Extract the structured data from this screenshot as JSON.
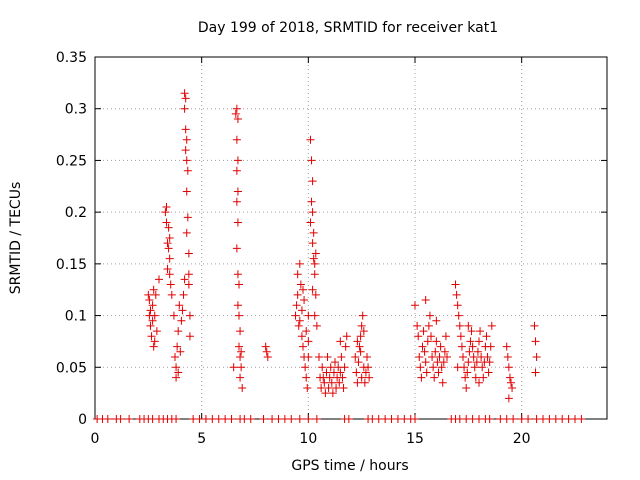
{
  "chart_data": {
    "type": "scatter",
    "title": "Day 199 of 2018, SRMTID for receiver kat1",
    "xlabel": "GPS time / hours",
    "ylabel": "SRMTID / TECUs",
    "xlim": [
      0,
      24
    ],
    "ylim": [
      0,
      0.35
    ],
    "x_ticks": [
      0,
      5,
      10,
      15,
      20
    ],
    "y_ticks": [
      0,
      0.05,
      0.1,
      0.15,
      0.2,
      0.25,
      0.3,
      0.35
    ],
    "x_tick_labels": [
      "0",
      "5",
      "10",
      "15",
      "20"
    ],
    "y_tick_labels": [
      "0",
      "0.05",
      "0.1",
      "0.15",
      "0.2",
      "0.25",
      "0.3",
      "0.35"
    ],
    "grid": true,
    "marker": "+",
    "color": "#e00000",
    "series": [
      {
        "points": [
          [
            0.1,
            0
          ],
          [
            0.35,
            0
          ],
          [
            0.6,
            0
          ],
          [
            1.0,
            0
          ],
          [
            1.2,
            0
          ],
          [
            1.6,
            0
          ],
          [
            2.1,
            0
          ],
          [
            2.3,
            0
          ],
          [
            2.5,
            0
          ],
          [
            2.7,
            0
          ],
          [
            3.0,
            0
          ],
          [
            3.2,
            0
          ],
          [
            3.4,
            0
          ],
          [
            3.6,
            0
          ],
          [
            3.8,
            0
          ],
          [
            4.6,
            0
          ],
          [
            4.9,
            0
          ],
          [
            5.2,
            0
          ],
          [
            5.5,
            0
          ],
          [
            5.8,
            0
          ],
          [
            6.1,
            0
          ],
          [
            6.4,
            0
          ],
          [
            6.8,
            0
          ],
          [
            7.0,
            0
          ],
          [
            7.3,
            0
          ],
          [
            7.9,
            0
          ],
          [
            8.3,
            0
          ],
          [
            8.6,
            0
          ],
          [
            8.9,
            0
          ],
          [
            9.2,
            0
          ],
          [
            9.6,
            0
          ],
          [
            10.0,
            0
          ],
          [
            10.4,
            0
          ],
          [
            11.7,
            0
          ],
          [
            11.9,
            0
          ],
          [
            12.8,
            0
          ],
          [
            13.0,
            0
          ],
          [
            13.3,
            0
          ],
          [
            13.6,
            0
          ],
          [
            13.9,
            0
          ],
          [
            14.2,
            0
          ],
          [
            14.5,
            0
          ],
          [
            14.8,
            0
          ],
          [
            15.0,
            0
          ],
          [
            16.7,
            0
          ],
          [
            16.9,
            0
          ],
          [
            17.1,
            0
          ],
          [
            17.4,
            0
          ],
          [
            17.7,
            0
          ],
          [
            18.0,
            0
          ],
          [
            18.3,
            0
          ],
          [
            18.5,
            0
          ],
          [
            19.0,
            0
          ],
          [
            19.3,
            0
          ],
          [
            19.6,
            0
          ],
          [
            20.0,
            0
          ],
          [
            20.3,
            0
          ],
          [
            20.7,
            0
          ],
          [
            21.0,
            0
          ],
          [
            21.3,
            0
          ],
          [
            21.6,
            0
          ],
          [
            21.9,
            0
          ],
          [
            22.2,
            0
          ],
          [
            22.5,
            0
          ],
          [
            22.8,
            0
          ],
          [
            2.5,
            0.12
          ],
          [
            2.55,
            0.1
          ],
          [
            2.6,
            0.09
          ],
          [
            2.65,
            0.08
          ],
          [
            2.7,
            0.11
          ],
          [
            2.75,
            0.07
          ],
          [
            2.8,
            0.1
          ],
          [
            2.85,
            0.12
          ],
          [
            2.9,
            0.085
          ],
          [
            2.6,
            0.105
          ],
          [
            2.7,
            0.095
          ],
          [
            2.75,
            0.125
          ],
          [
            3.0,
            0.135
          ],
          [
            2.55,
            0.115
          ],
          [
            2.8,
            0.075
          ],
          [
            3.3,
            0.2
          ],
          [
            3.35,
            0.19
          ],
          [
            3.4,
            0.17
          ],
          [
            3.45,
            0.165
          ],
          [
            3.5,
            0.155
          ],
          [
            3.5,
            0.14
          ],
          [
            3.55,
            0.13
          ],
          [
            3.4,
            0.145
          ],
          [
            3.6,
            0.12
          ],
          [
            3.45,
            0.185
          ],
          [
            3.5,
            0.175
          ],
          [
            3.35,
            0.205
          ],
          [
            3.7,
            0.1
          ],
          [
            3.75,
            0.06
          ],
          [
            3.8,
            0.05
          ],
          [
            3.8,
            0.04
          ],
          [
            3.85,
            0.07
          ],
          [
            3.9,
            0.085
          ],
          [
            3.95,
            0.11
          ],
          [
            4.0,
            0.065
          ],
          [
            4.05,
            0.095
          ],
          [
            4.1,
            0.105
          ],
          [
            4.15,
            0.12
          ],
          [
            4.2,
            0.135
          ],
          [
            3.9,
            0.045
          ],
          [
            4.2,
            0.315
          ],
          [
            4.25,
            0.31
          ],
          [
            4.2,
            0.3
          ],
          [
            4.25,
            0.28
          ],
          [
            4.3,
            0.27
          ],
          [
            4.25,
            0.26
          ],
          [
            4.3,
            0.25
          ],
          [
            4.35,
            0.24
          ],
          [
            4.3,
            0.22
          ],
          [
            4.35,
            0.195
          ],
          [
            4.3,
            0.18
          ],
          [
            4.4,
            0.16
          ],
          [
            4.4,
            0.14
          ],
          [
            4.4,
            0.13
          ],
          [
            4.45,
            0.1
          ],
          [
            4.45,
            0.08
          ],
          [
            6.5,
            0.05
          ],
          [
            6.6,
            0.295
          ],
          [
            6.65,
            0.3
          ],
          [
            6.7,
            0.29
          ],
          [
            6.65,
            0.27
          ],
          [
            6.7,
            0.25
          ],
          [
            6.65,
            0.24
          ],
          [
            6.7,
            0.22
          ],
          [
            6.65,
            0.21
          ],
          [
            6.7,
            0.19
          ],
          [
            6.65,
            0.165
          ],
          [
            6.7,
            0.14
          ],
          [
            6.75,
            0.13
          ],
          [
            6.7,
            0.11
          ],
          [
            6.75,
            0.1
          ],
          [
            6.8,
            0.085
          ],
          [
            6.75,
            0.07
          ],
          [
            6.8,
            0.06
          ],
          [
            6.85,
            0.05
          ],
          [
            6.8,
            0.04
          ],
          [
            6.9,
            0.03
          ],
          [
            6.85,
            0.065
          ],
          [
            8.0,
            0.07
          ],
          [
            8.05,
            0.065
          ],
          [
            8.1,
            0.06
          ],
          [
            9.4,
            0.1
          ],
          [
            9.45,
            0.11
          ],
          [
            9.5,
            0.12
          ],
          [
            9.55,
            0.09
          ],
          [
            9.6,
            0.15
          ],
          [
            9.65,
            0.13
          ],
          [
            9.7,
            0.08
          ],
          [
            9.75,
            0.07
          ],
          [
            9.8,
            0.06
          ],
          [
            9.85,
            0.05
          ],
          [
            9.9,
            0.04
          ],
          [
            9.95,
            0.03
          ],
          [
            9.6,
            0.095
          ],
          [
            9.7,
            0.105
          ],
          [
            9.8,
            0.115
          ],
          [
            9.9,
            0.085
          ],
          [
            10.0,
            0.075
          ],
          [
            9.5,
            0.14
          ],
          [
            9.75,
            0.125
          ],
          [
            10.0,
            0.1
          ],
          [
            10.0,
            0.06
          ],
          [
            10.1,
            0.27
          ],
          [
            10.15,
            0.25
          ],
          [
            10.2,
            0.23
          ],
          [
            10.15,
            0.21
          ],
          [
            10.2,
            0.2
          ],
          [
            10.25,
            0.18
          ],
          [
            10.2,
            0.17
          ],
          [
            10.25,
            0.155
          ],
          [
            10.3,
            0.15
          ],
          [
            10.3,
            0.14
          ],
          [
            10.35,
            0.12
          ],
          [
            10.2,
            0.125
          ],
          [
            10.3,
            0.1
          ],
          [
            10.4,
            0.09
          ],
          [
            10.1,
            0.19
          ],
          [
            10.35,
            0.16
          ],
          [
            10.5,
            0.06
          ],
          [
            10.55,
            0.04
          ],
          [
            10.6,
            0.03
          ],
          [
            10.65,
            0.05
          ],
          [
            10.7,
            0.04
          ],
          [
            10.75,
            0.035
          ],
          [
            10.8,
            0.025
          ],
          [
            10.85,
            0.045
          ],
          [
            10.9,
            0.06
          ],
          [
            10.95,
            0.03
          ],
          [
            11.0,
            0.04
          ],
          [
            11.05,
            0.05
          ],
          [
            11.1,
            0.035
          ],
          [
            11.15,
            0.025
          ],
          [
            11.2,
            0.045
          ],
          [
            11.25,
            0.055
          ],
          [
            11.3,
            0.03
          ],
          [
            11.35,
            0.04
          ],
          [
            11.4,
            0.05
          ],
          [
            11.45,
            0.035
          ],
          [
            11.5,
            0.045
          ],
          [
            11.55,
            0.06
          ],
          [
            11.6,
            0.04
          ],
          [
            11.65,
            0.03
          ],
          [
            11.7,
            0.05
          ],
          [
            11.75,
            0.07
          ],
          [
            11.8,
            0.08
          ],
          [
            11.5,
            0.075
          ],
          [
            12.2,
            0.06
          ],
          [
            12.25,
            0.045
          ],
          [
            12.3,
            0.035
          ],
          [
            12.35,
            0.055
          ],
          [
            12.4,
            0.07
          ],
          [
            12.45,
            0.08
          ],
          [
            12.5,
            0.09
          ],
          [
            12.55,
            0.1
          ],
          [
            12.5,
            0.04
          ],
          [
            12.6,
            0.05
          ],
          [
            12.65,
            0.035
          ],
          [
            12.7,
            0.045
          ],
          [
            12.75,
            0.06
          ],
          [
            12.8,
            0.05
          ],
          [
            12.85,
            0.04
          ],
          [
            12.3,
            0.075
          ],
          [
            12.45,
            0.065
          ],
          [
            12.6,
            0.085
          ],
          [
            15.0,
            0.11
          ],
          [
            15.1,
            0.09
          ],
          [
            15.15,
            0.08
          ],
          [
            15.2,
            0.06
          ],
          [
            15.25,
            0.05
          ],
          [
            15.3,
            0.04
          ],
          [
            15.35,
            0.07
          ],
          [
            15.4,
            0.085
          ],
          [
            15.45,
            0.065
          ],
          [
            15.5,
            0.055
          ],
          [
            15.55,
            0.045
          ],
          [
            15.6,
            0.075
          ],
          [
            15.65,
            0.09
          ],
          [
            15.7,
            0.1
          ],
          [
            15.75,
            0.08
          ],
          [
            15.8,
            0.06
          ],
          [
            15.85,
            0.05
          ],
          [
            15.9,
            0.04
          ],
          [
            15.95,
            0.065
          ],
          [
            16.0,
            0.075
          ],
          [
            16.05,
            0.055
          ],
          [
            16.1,
            0.045
          ],
          [
            16.15,
            0.06
          ],
          [
            16.2,
            0.07
          ],
          [
            16.25,
            0.05
          ],
          [
            16.3,
            0.035
          ],
          [
            16.35,
            0.055
          ],
          [
            16.4,
            0.065
          ],
          [
            16.45,
            0.08
          ],
          [
            16.5,
            0.06
          ],
          [
            15.5,
            0.115
          ],
          [
            16.0,
            0.095
          ],
          [
            16.9,
            0.13
          ],
          [
            16.95,
            0.12
          ],
          [
            17.0,
            0.11
          ],
          [
            17.05,
            0.1
          ],
          [
            17.1,
            0.09
          ],
          [
            17.15,
            0.08
          ],
          [
            17.2,
            0.07
          ],
          [
            17.25,
            0.06
          ],
          [
            17.3,
            0.05
          ],
          [
            17.35,
            0.04
          ],
          [
            17.4,
            0.03
          ],
          [
            17.45,
            0.045
          ],
          [
            17.5,
            0.055
          ],
          [
            17.55,
            0.065
          ],
          [
            17.6,
            0.075
          ],
          [
            17.65,
            0.085
          ],
          [
            17.7,
            0.07
          ],
          [
            17.75,
            0.06
          ],
          [
            17.8,
            0.05
          ],
          [
            17.85,
            0.04
          ],
          [
            17.9,
            0.055
          ],
          [
            17.95,
            0.065
          ],
          [
            18.0,
            0.075
          ],
          [
            18.05,
            0.085
          ],
          [
            18.1,
            0.06
          ],
          [
            18.15,
            0.05
          ],
          [
            18.2,
            0.04
          ],
          [
            18.25,
            0.055
          ],
          [
            18.3,
            0.07
          ],
          [
            18.35,
            0.08
          ],
          [
            18.4,
            0.06
          ],
          [
            18.45,
            0.045
          ],
          [
            18.5,
            0.055
          ],
          [
            18.55,
            0.07
          ],
          [
            18.6,
            0.09
          ],
          [
            17.0,
            0.05
          ],
          [
            17.5,
            0.09
          ],
          [
            18.0,
            0.035
          ],
          [
            19.3,
            0.07
          ],
          [
            19.35,
            0.06
          ],
          [
            19.4,
            0.05
          ],
          [
            19.45,
            0.04
          ],
          [
            19.5,
            0.035
          ],
          [
            19.55,
            0.03
          ],
          [
            19.4,
            0.02
          ],
          [
            20.6,
            0.09
          ],
          [
            20.65,
            0.075
          ],
          [
            20.7,
            0.06
          ],
          [
            20.65,
            0.045
          ]
        ]
      }
    ]
  }
}
